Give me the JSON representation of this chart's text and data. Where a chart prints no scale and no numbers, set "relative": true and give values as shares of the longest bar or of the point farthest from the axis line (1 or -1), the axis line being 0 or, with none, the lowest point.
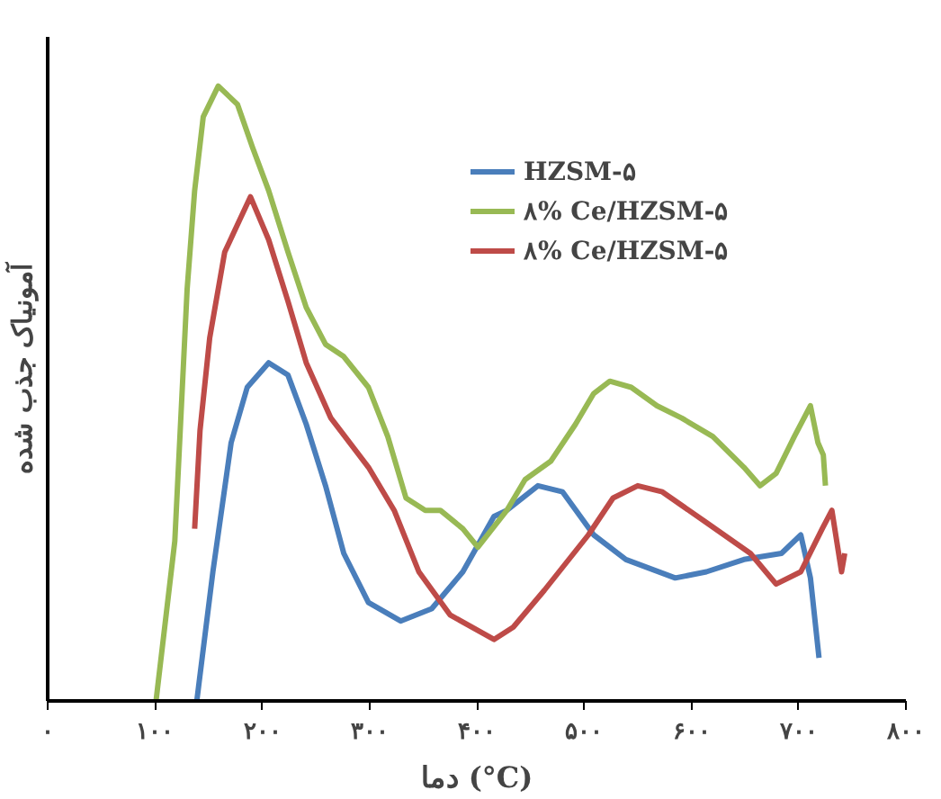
{
  "chart_data": {
    "type": "line",
    "relative": true,
    "xlabel": "دما (°C)",
    "ylabel": "آمونیاک جذب شده",
    "xlim": [
      0,
      800
    ],
    "xticks": [
      {
        "value": 0,
        "label": "۰"
      },
      {
        "value": 100,
        "label": "۱۰۰"
      },
      {
        "value": 200,
        "label": "۲۰۰"
      },
      {
        "value": 300,
        "label": "۳۰۰"
      },
      {
        "value": 400,
        "label": "۴۰۰"
      },
      {
        "value": 500,
        "label": "۵۰۰"
      },
      {
        "value": 600,
        "label": "۶۰۰"
      },
      {
        "value": 700,
        "label": "۷۰۰"
      },
      {
        "value": 800,
        "label": "۸۰۰"
      }
    ],
    "grid": false,
    "legend": "top right",
    "marker": "none",
    "line_style": "solid",
    "tick_labels": "x",
    "series": [
      {
        "name": "HZSM-۵",
        "color": "#4a7ebb",
        "x": [
          139,
          154,
          171,
          186,
          206,
          224,
          241,
          259,
          276,
          299,
          329,
          358,
          387,
          416,
          428,
          457,
          480,
          509,
          539,
          585,
          614,
          649,
          684,
          702,
          711,
          719
        ],
        "values": [
          0,
          0.21,
          0.42,
          0.51,
          0.55,
          0.53,
          0.45,
          0.35,
          0.24,
          0.16,
          0.13,
          0.15,
          0.21,
          0.3,
          0.31,
          0.35,
          0.34,
          0.27,
          0.23,
          0.2,
          0.21,
          0.23,
          0.24,
          0.27,
          0.2,
          0.07
        ]
      },
      {
        "name": "۸% Ce/HZSM-۵",
        "color": "#98b954",
        "x": [
          101,
          118.5,
          130,
          137,
          145,
          159,
          177,
          191,
          206,
          224,
          241,
          259,
          276,
          299,
          317,
          334,
          352,
          366,
          387,
          401,
          428,
          445,
          469,
          492,
          509,
          524,
          544,
          568,
          591,
          620,
          649,
          664,
          679,
          696,
          711,
          718,
          723,
          725
        ],
        "values": [
          0,
          0.26,
          0.67,
          0.83,
          0.95,
          1.0,
          0.97,
          0.9,
          0.83,
          0.73,
          0.64,
          0.58,
          0.56,
          0.51,
          0.43,
          0.33,
          0.31,
          0.31,
          0.28,
          0.25,
          0.31,
          0.36,
          0.39,
          0.45,
          0.5,
          0.52,
          0.51,
          0.48,
          0.46,
          0.43,
          0.38,
          0.35,
          0.37,
          0.43,
          0.48,
          0.42,
          0.4,
          0.35
        ]
      },
      {
        "name": "۸% Ce/HZSM-۵",
        "color": "#be4b48",
        "x": [
          137,
          142,
          151,
          165,
          189,
          206,
          224,
          241,
          264,
          299,
          323,
          346,
          375,
          416,
          434,
          463,
          504,
          527,
          550,
          573,
          614,
          655,
          679,
          702,
          722,
          731,
          740,
          743
        ],
        "values": [
          0.28,
          0.44,
          0.59,
          0.73,
          0.82,
          0.75,
          0.65,
          0.55,
          0.46,
          0.38,
          0.31,
          0.21,
          0.14,
          0.1,
          0.12,
          0.18,
          0.27,
          0.33,
          0.35,
          0.34,
          0.29,
          0.24,
          0.19,
          0.21,
          0.28,
          0.31,
          0.21,
          0.24
        ]
      }
    ]
  }
}
